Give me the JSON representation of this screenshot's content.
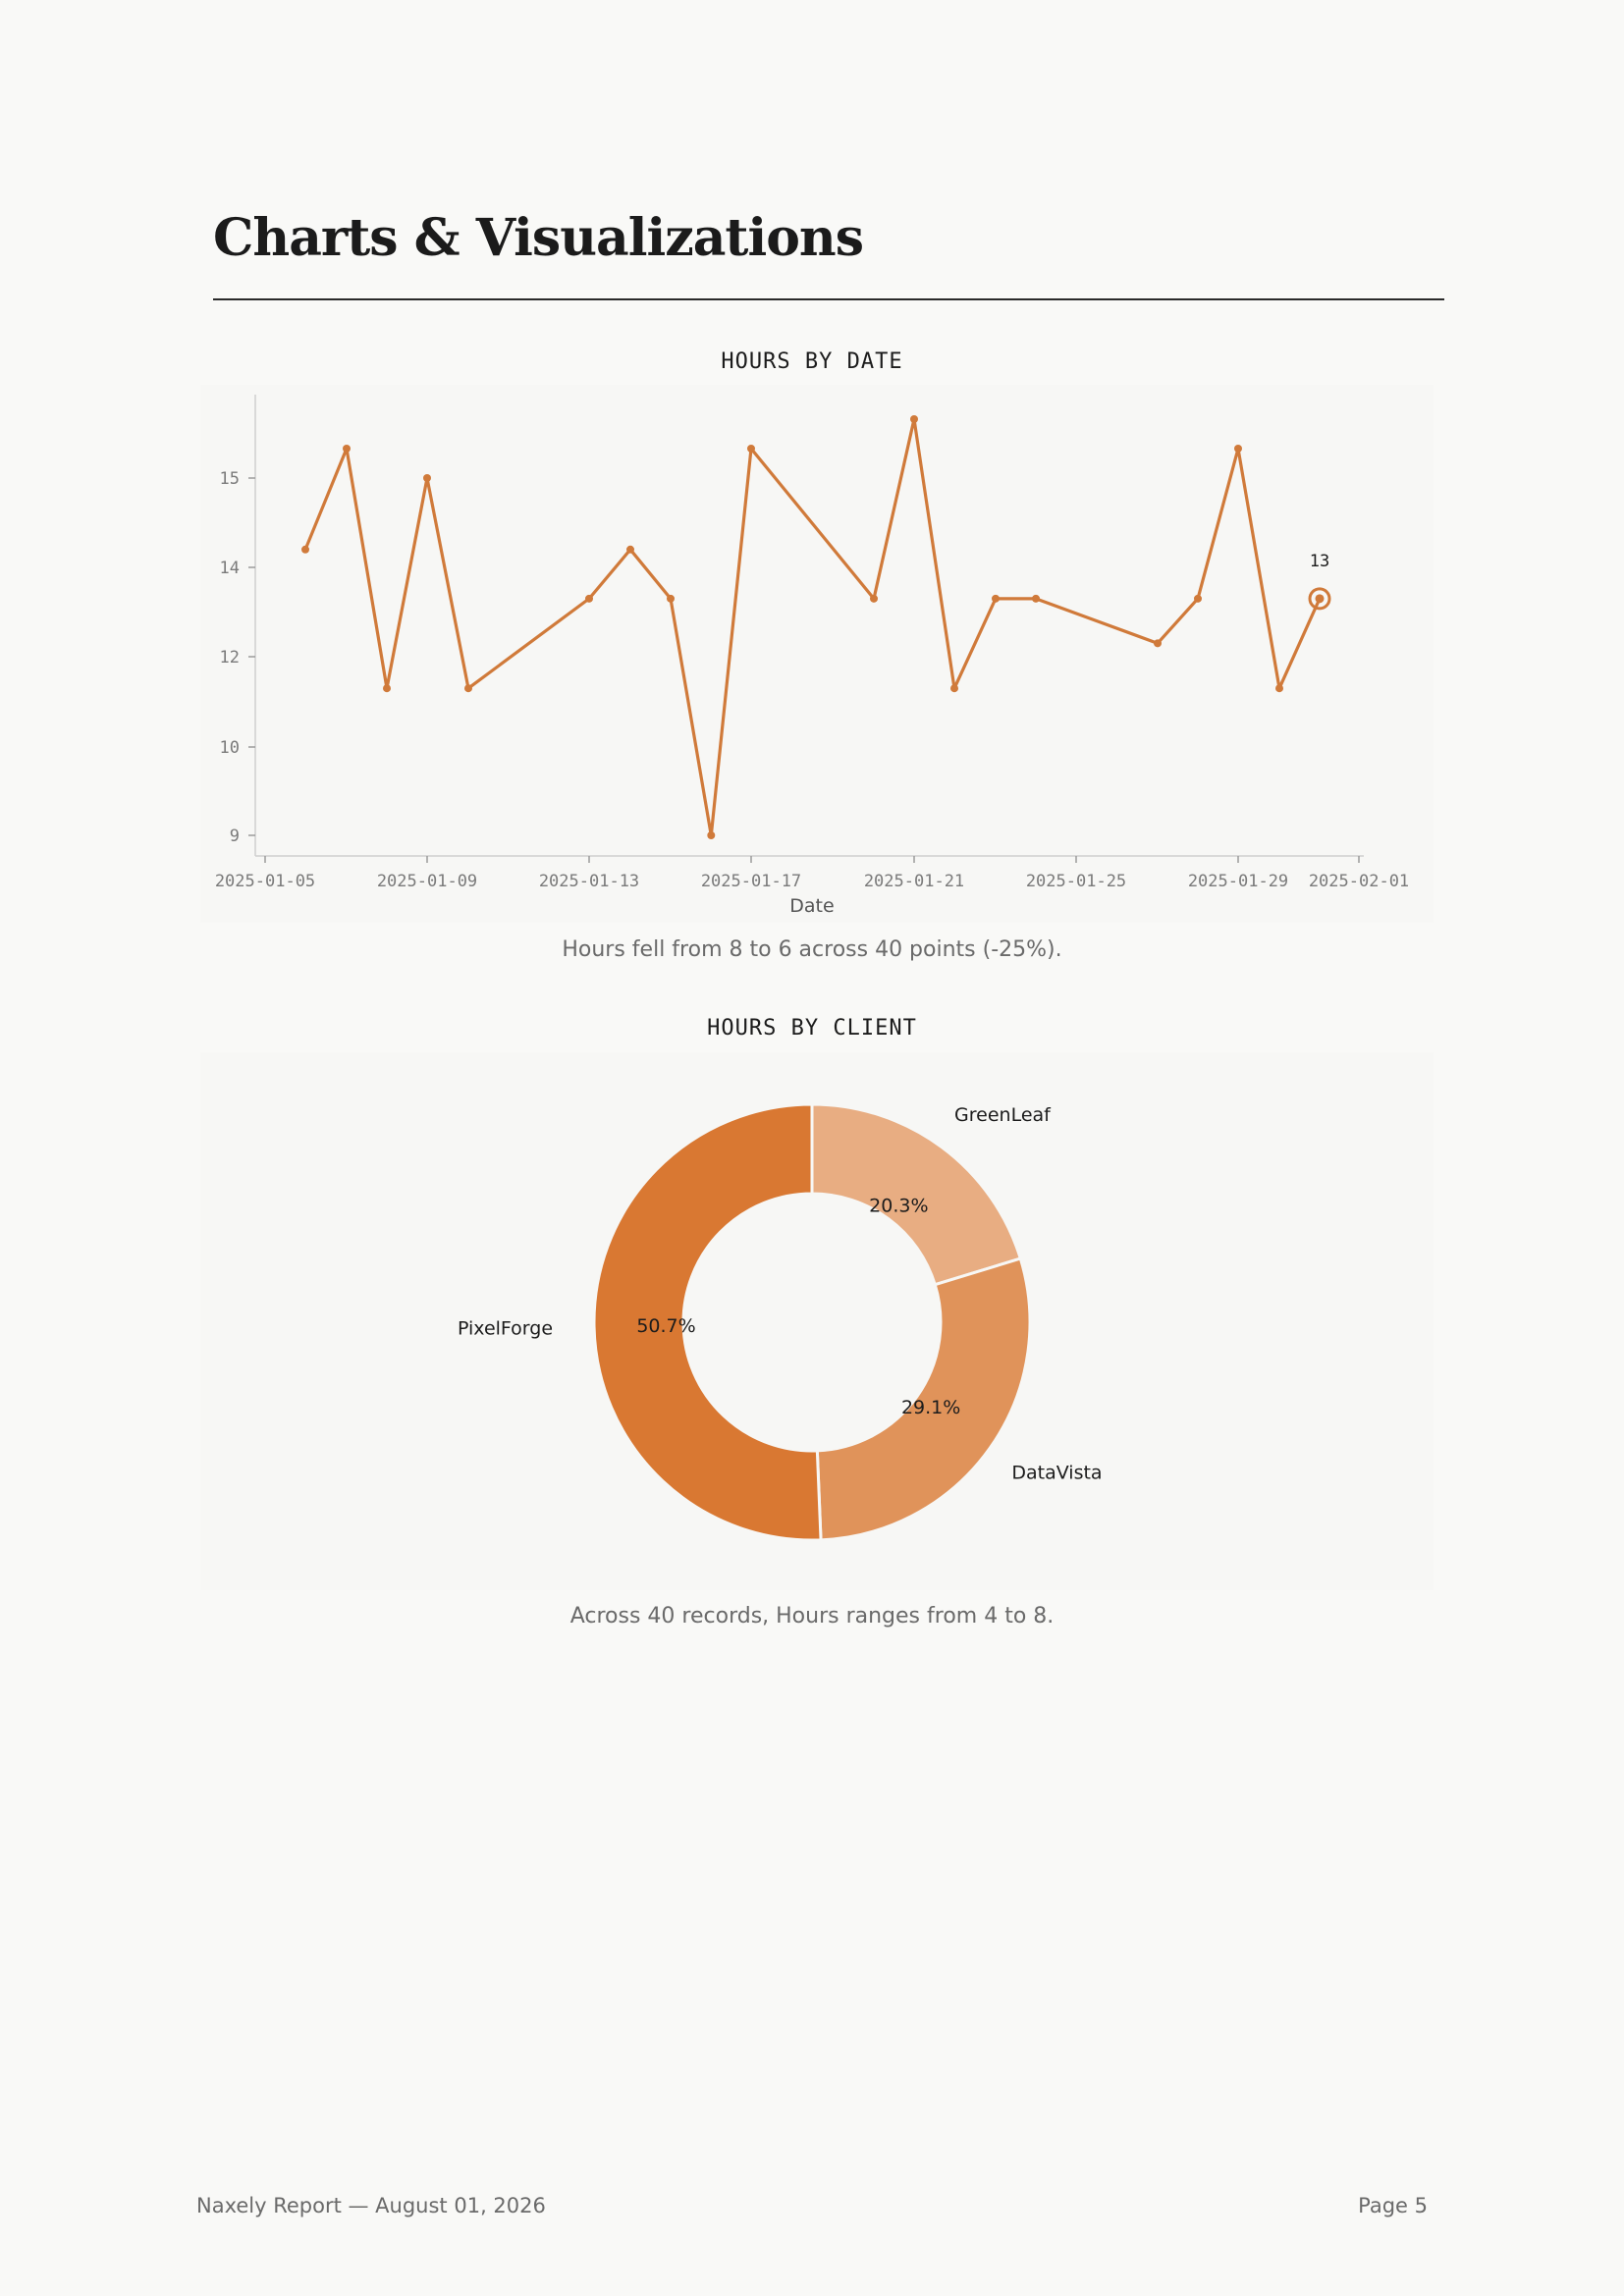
{
  "page": {
    "title": "Charts & Visualizations",
    "footer_left": "Naxely Report — August 01, 2026",
    "footer_right": "Page 5"
  },
  "colors": {
    "line": "#d07a3a",
    "pie": [
      "#e8ad82",
      "#e0935a",
      "#d97832"
    ]
  },
  "chart_data": [
    {
      "type": "line",
      "title": "HOURS BY DATE",
      "xlabel": "Date",
      "ylabel": "",
      "caption": "Hours fell from 8 to 6 across 40 points (-25%).",
      "x_ticks": [
        "2025-01-05",
        "2025-01-09",
        "2025-01-13",
        "2025-01-17",
        "2025-01-21",
        "2025-01-25",
        "2025-01-29",
        "2025-02-01"
      ],
      "y_ticks": [
        9,
        10,
        12,
        14,
        15
      ],
      "x": [
        "2025-01-06",
        "2025-01-07",
        "2025-01-08",
        "2025-01-09",
        "2025-01-10",
        "2025-01-14",
        "2025-01-15",
        "2025-01-16",
        "2025-01-17",
        "2025-01-18",
        "2025-01-23",
        "2025-01-24",
        "2025-01-25",
        "2025-01-26",
        "2025-01-27",
        "2025-01-30",
        "2025-01-31",
        "2025-02-01",
        "2025-02-02",
        "2025-02-03"
      ],
      "values": [
        14.2,
        15.3,
        11.3,
        15.0,
        11.3,
        13.3,
        14.2,
        13.3,
        9.0,
        15.3,
        13.3,
        15.6,
        11.3,
        13.3,
        13.3,
        12.3,
        13.3,
        15.3,
        11.3,
        13.3
      ],
      "annotation": {
        "label": "13",
        "x": "2025-02-03",
        "y": 13.3
      },
      "grid": false
    },
    {
      "type": "pie",
      "title": "HOURS BY CLIENT",
      "caption": "Across 40 records, Hours ranges from 4 to 8.",
      "slices": [
        {
          "label": "GreenLeaf",
          "value": 20.3,
          "pct_label": "20.3%"
        },
        {
          "label": "DataVista",
          "value": 29.1,
          "pct_label": "29.1%"
        },
        {
          "label": "PixelForge",
          "value": 50.7,
          "pct_label": "50.7%"
        }
      ]
    }
  ]
}
